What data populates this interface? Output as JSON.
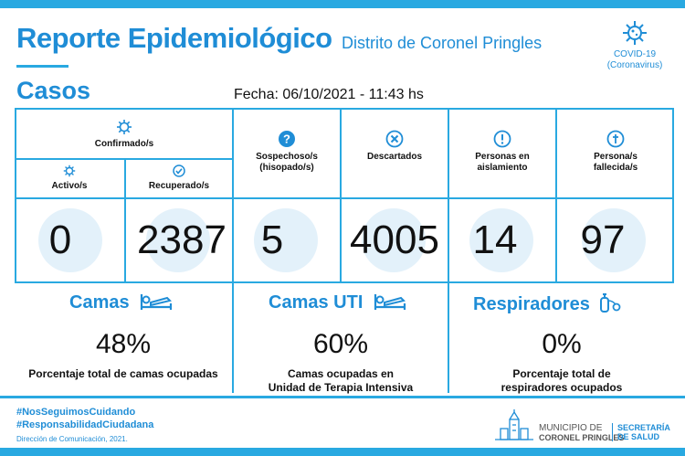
{
  "header": {
    "title": "Reporte Epidemiológico",
    "subtitle": "Distrito de Coronel Pringles",
    "badge_line1": "COVID-19",
    "badge_line2": "(Coronavirus)"
  },
  "casos": {
    "title": "Casos",
    "fecha": "Fecha: 06/10/2021 - 11:43 hs"
  },
  "cases": {
    "confirmados_label": "Confirmado/s",
    "activos_label": "Activo/s",
    "recuperados_label": "Recuperado/s",
    "sospechosos_label1": "Sospechoso/s",
    "sospechosos_label2": "(hisopado/s)",
    "descartados_label": "Descartados",
    "aislamiento_label1": "Personas en",
    "aislamiento_label2": "aislamiento",
    "fallecidos_label1": "Persona/s",
    "fallecidos_label2": "fallecida/s",
    "activos": "0",
    "recuperados": "2387",
    "sospechosos": "5",
    "descartados": "4005",
    "aislamiento": "14",
    "fallecidos": "97"
  },
  "camas": {
    "title": "Camas",
    "value": "48%",
    "desc": "Porcentaje total de camas ocupadas"
  },
  "camas_uti": {
    "title": "Camas UTI",
    "value": "60%",
    "desc1": "Camas ocupadas en",
    "desc2": "Unidad de Terapia Intensiva"
  },
  "respiradores": {
    "title": "Respiradores",
    "value": "0%",
    "desc1": "Porcentaje total de",
    "desc2": "respiradores ocupados"
  },
  "footer": {
    "hashtag1": "#NosSeguimosCuidando",
    "hashtag2": "#ResponsabilidadCiudadana",
    "credits": "Dirección de Comunicación, 2021.",
    "muni_line1": "MUNICIPIO DE",
    "muni_line2": "CORONEL PRINGLES",
    "secretaria_line1": "SECRETARÍA",
    "secretaria_line2": "DE SALUD"
  },
  "colors": {
    "accent": "#1f8dd6",
    "border": "#29a9e1",
    "bg_icon": "#e3f1fa"
  }
}
